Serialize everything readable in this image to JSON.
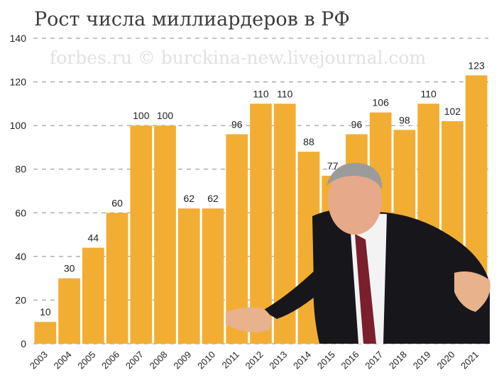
{
  "chart_data": {
    "type": "bar",
    "title": "Рост числа миллиардеров в РФ",
    "watermark": "forbes.ru © burckina-new.livejournal.com",
    "categories": [
      "2003",
      "2004",
      "2005",
      "2006",
      "2007",
      "2008",
      "2009",
      "2010",
      "2011",
      "2012",
      "2013",
      "2014",
      "2015",
      "2016",
      "2017",
      "2018",
      "2019",
      "2020",
      "2021"
    ],
    "values": [
      10,
      30,
      44,
      60,
      100,
      100,
      62,
      62,
      96,
      110,
      110,
      88,
      77,
      96,
      106,
      98,
      110,
      102,
      123
    ],
    "ylim": [
      0,
      140
    ],
    "yticks": [
      0,
      20,
      40,
      60,
      80,
      100,
      120,
      140
    ],
    "grid": true,
    "bar_color": "#f2ae33"
  }
}
